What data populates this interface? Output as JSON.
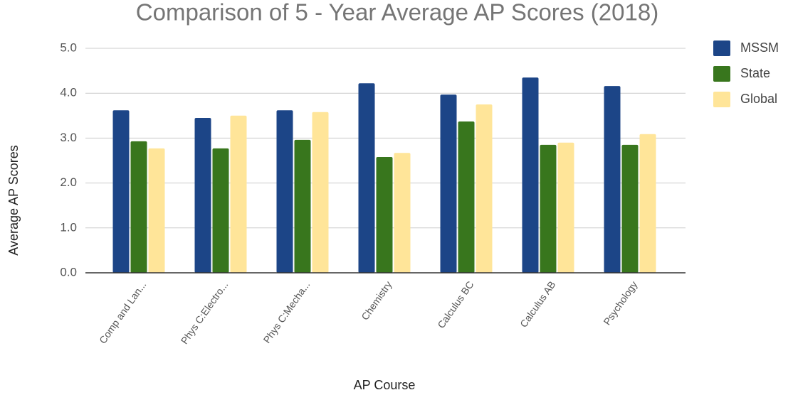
{
  "chart_data": {
    "type": "bar",
    "title": "Comparison of 5 - Year Average AP Scores (2018)",
    "x_label": "AP Course",
    "y_label": "Average AP Scores",
    "categories": [
      "Comp and Lan...",
      "Phys C:Electro...",
      "Phys C:Mecha...",
      "Chemistry",
      "Calculus BC",
      "Calculus AB",
      "Psychology"
    ],
    "series": [
      {
        "name": "MSSM",
        "color": "#1c4587",
        "values": [
          3.62,
          3.45,
          3.62,
          4.22,
          3.97,
          4.35,
          4.16
        ]
      },
      {
        "name": "State",
        "color": "#38761d",
        "values": [
          2.93,
          2.77,
          2.96,
          2.58,
          3.37,
          2.85,
          2.85
        ]
      },
      {
        "name": "Global",
        "color": "#ffe599",
        "values": [
          2.77,
          3.5,
          3.58,
          2.67,
          3.75,
          2.9,
          3.09
        ]
      }
    ],
    "ylim": [
      0,
      5
    ],
    "yticks": [
      {
        "value": 0,
        "label": "0.0"
      },
      {
        "value": 1,
        "label": "1.0"
      },
      {
        "value": 2,
        "label": "2.0"
      },
      {
        "value": 3,
        "label": "3.0"
      },
      {
        "value": 4,
        "label": "4.0"
      },
      {
        "value": 5,
        "label": "5.0"
      }
    ],
    "grid": true,
    "legend": "right"
  }
}
